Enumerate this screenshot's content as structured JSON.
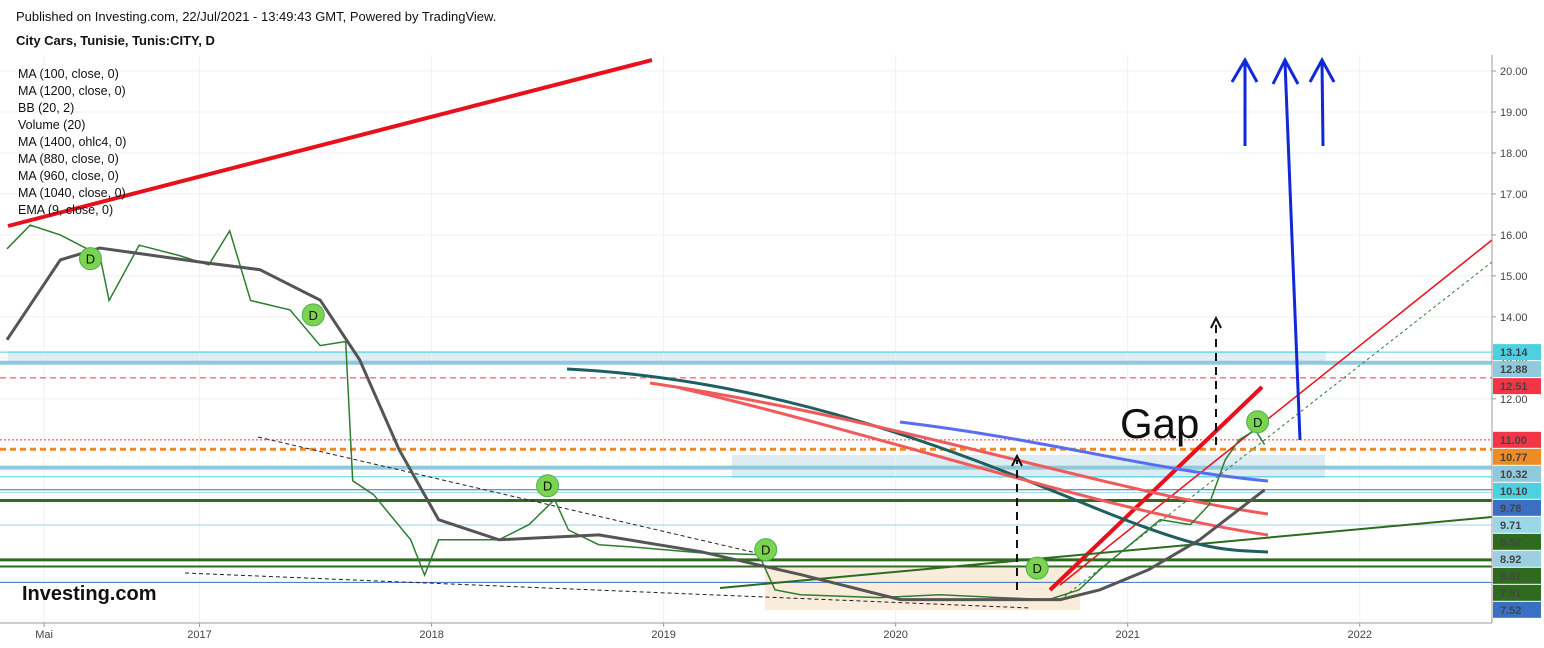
{
  "header": {
    "published": "Published on Investing.com, 22/Jul/2021 - 13:49:43 GMT, Powered by TradingView.",
    "symbol": "City Cars, Tunisie, Tunis:CITY, D"
  },
  "logo": "Investing.com",
  "chart_data": {
    "type": "line",
    "indicators": [
      "MA (100, close, 0)",
      "MA (1200, close, 0)",
      "BB (20, 2)",
      "Volume (20)",
      "MA (1400, ohlc4, 0)",
      "MA (880, close, 0)",
      "MA (960, close, 0)",
      "MA (1040, close, 0)",
      "EMA (9, close, 0)"
    ],
    "xlim": [
      2016.14,
      2022.57
    ],
    "ylim": [
      6.53,
      20.39
    ],
    "xticks": [
      {
        "value": 2016.33,
        "label": "Mai"
      },
      2017,
      2018,
      2019,
      2020,
      2021,
      2022
    ],
    "yticks": [
      {
        "value": 12,
        "label": "12.00"
      },
      {
        "value": 13,
        "label": "13.00"
      },
      {
        "value": 14,
        "label": "14.00"
      },
      {
        "value": 15,
        "label": "15.00"
      },
      {
        "value": 16,
        "label": "16.00"
      },
      {
        "value": 17,
        "label": "17.00"
      },
      {
        "value": 18,
        "label": "18.00"
      },
      {
        "value": 19,
        "label": "19.00"
      },
      {
        "value": 20,
        "label": "20.00"
      }
    ],
    "grid": true,
    "series": [
      {
        "color": "#2e7d32",
        "x": [
          2016.17,
          2016.27,
          2016.4,
          2016.57,
          2016.61,
          2016.74,
          2016.91,
          2017.04,
          2017.13,
          2017.22,
          2017.39,
          2017.52,
          2017.63,
          2017.66,
          2017.75,
          2017.91,
          2017.97,
          2018.03,
          2018.16,
          2018.29,
          2018.42,
          2018.53,
          2018.59,
          2018.72,
          2018.9,
          2019.16,
          2019.41,
          2019.48,
          2019.59,
          2019.93,
          2020.19,
          2020.45,
          2020.66,
          2020.79,
          2020.88,
          2021.01,
          2021.14,
          2021.27,
          2021.35,
          2021.42,
          2021.48,
          2021.55,
          2021.59
        ],
        "values": [
          15.66,
          16.24,
          16.0,
          15.5,
          14.4,
          15.75,
          15.5,
          15.27,
          16.1,
          14.4,
          14.17,
          13.3,
          13.4,
          10.0,
          9.66,
          8.56,
          7.7,
          8.56,
          8.56,
          8.56,
          8.93,
          9.54,
          8.8,
          8.44,
          8.37,
          8.24,
          8.2,
          7.34,
          7.22,
          7.15,
          7.22,
          7.15,
          7.1,
          7.34,
          7.83,
          8.44,
          9.05,
          8.93,
          9.41,
          10.51,
          11.0,
          11.24,
          10.88
        ]
      },
      {
        "color": "#555555",
        "x": [
          2016.17,
          2016.4,
          2016.57,
          2017.0,
          2017.26,
          2017.52,
          2017.69,
          2017.86,
          2018.03,
          2018.29,
          2018.72,
          2019.16,
          2019.59,
          2020.02,
          2020.45,
          2020.71,
          2020.88,
          2021.09,
          2021.31,
          2021.59
        ],
        "values": [
          13.44,
          15.39,
          15.68,
          15.34,
          15.15,
          14.41,
          12.95,
          10.76,
          9.05,
          8.56,
          8.68,
          8.27,
          7.71,
          7.1,
          7.1,
          7.1,
          7.34,
          7.83,
          8.56,
          9.78
        ]
      }
    ],
    "levels": [
      {
        "value": 13.14,
        "color": "#4dd0e1",
        "style": "solid",
        "width": 1
      },
      {
        "value": 12.88,
        "color": "#8ec9dc",
        "style": "solid",
        "width": 4
      },
      {
        "value": 12.51,
        "color": "#f23645",
        "style": "dashed",
        "width": 1
      },
      {
        "value": 11.0,
        "label": "11.00",
        "color": "#f23645",
        "style": "dotted",
        "width": 1
      },
      {
        "value": 10.77,
        "color": "#f08a24",
        "style": "dashed",
        "width": 3
      },
      {
        "value": 10.32,
        "color": "#8ec9dc",
        "style": "solid",
        "width": 4
      },
      {
        "value": 10.1,
        "label": "10.10",
        "color": "#4dd0e1",
        "style": "solid",
        "width": 1
      },
      {
        "value": 9.78,
        "color": "#3a6fc4",
        "style": "solid",
        "width": 1
      },
      {
        "value": 9.71,
        "color": "#9ad8e8",
        "style": "solid",
        "width": 1
      },
      {
        "value": 9.52,
        "color": "#2f6b1f",
        "style": "solid",
        "width": 3
      },
      {
        "value": 8.92,
        "color": "#9ccfe0",
        "style": "solid",
        "width": 1
      },
      {
        "value": 8.07,
        "color": "#2f6b1f",
        "style": "solid",
        "width": 3
      },
      {
        "value": 7.91,
        "color": "#2f6b1f",
        "style": "solid",
        "width": 2
      },
      {
        "value": 7.52,
        "color": "#3a6fc4",
        "style": "solid",
        "width": 1
      }
    ],
    "markers": [
      {
        "label": "D",
        "x": 2016.53,
        "y": 15.42
      },
      {
        "label": "D",
        "x": 2017.49,
        "y": 14.05
      },
      {
        "label": "D",
        "x": 2018.5,
        "y": 9.88
      },
      {
        "label": "D",
        "x": 2019.44,
        "y": 8.32
      },
      {
        "label": "D",
        "x": 2020.61,
        "y": 7.87
      },
      {
        "label": "D",
        "x": 2021.56,
        "y": 11.44
      }
    ],
    "annotation": "Gap"
  }
}
